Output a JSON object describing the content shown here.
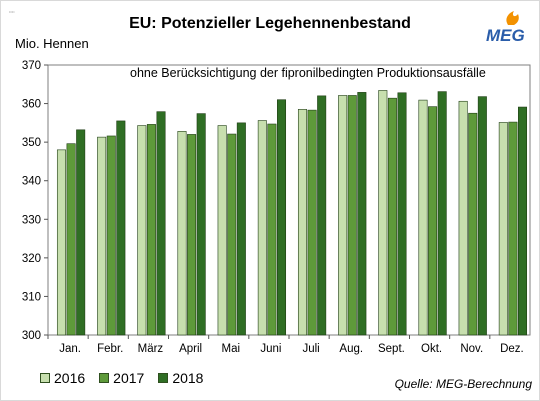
{
  "header": {
    "title": "EU: Potenzieller Legehennenbestand",
    "logo_text": "MEG",
    "tiny_mark": "••••"
  },
  "footer": {
    "source": "Quelle: MEG-Berechnung"
  },
  "colors": {
    "s2016": "#c7dfae",
    "s2017": "#5e9a3a",
    "s2018": "#2f6e24",
    "bar_edge": "#1f3d14",
    "logo_orange": "#f39200",
    "logo_blue": "#2a5daa"
  },
  "chart_data": {
    "type": "bar",
    "title": "EU: Potenzieller Legehennenbestand",
    "subtitle": "ohne Berücksichtigung der fipronilbedingten Produktionsausfälle",
    "ylabel": "Mio. Hennen",
    "xlabel": "",
    "ylim": [
      300,
      370
    ],
    "yticks": [
      300,
      310,
      320,
      330,
      340,
      350,
      360,
      370
    ],
    "grid": false,
    "legend_position": "bottom-left",
    "categories": [
      "Jan.",
      "Febr.",
      "März",
      "April",
      "Mai",
      "Juni",
      "Juli",
      "Aug.",
      "Sept.",
      "Okt.",
      "Nov.",
      "Dez."
    ],
    "series": [
      {
        "name": "2016",
        "values": [
          348.0,
          351.3,
          354.3,
          352.8,
          354.3,
          355.6,
          358.5,
          362.1,
          363.4,
          360.9,
          360.6,
          355.1
        ]
      },
      {
        "name": "2017",
        "values": [
          349.6,
          351.6,
          354.6,
          352.0,
          352.1,
          354.7,
          358.3,
          362.1,
          361.4,
          359.2,
          357.5,
          355.2
        ]
      },
      {
        "name": "2018",
        "values": [
          353.2,
          355.5,
          357.9,
          357.4,
          355.0,
          361.0,
          362.0,
          362.9,
          362.8,
          363.1,
          361.8,
          359.1
        ]
      }
    ]
  }
}
